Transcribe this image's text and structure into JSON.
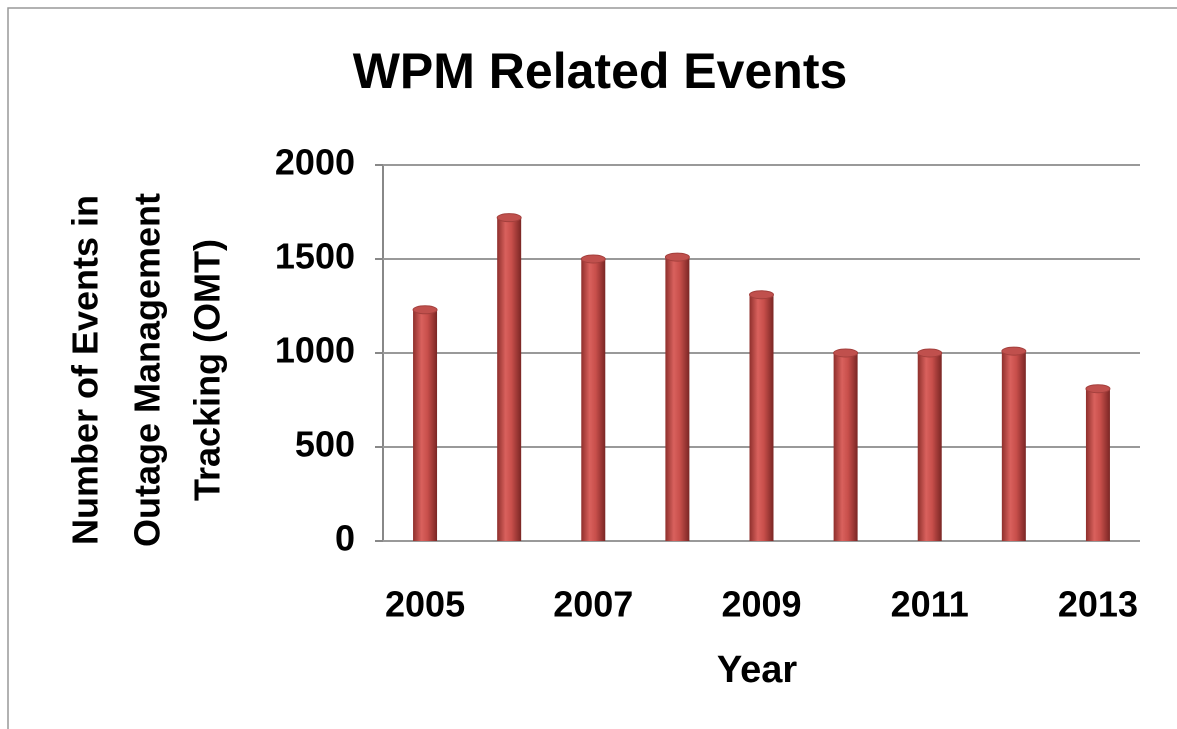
{
  "chart_data": {
    "type": "bar",
    "title": "WPM Related Events",
    "xlabel": "Year",
    "ylabel": [
      "Number of Events in",
      "Outage Management",
      "Tracking (OMT)"
    ],
    "categories": [
      "2005",
      null,
      "2007",
      null,
      "2009",
      null,
      "2011",
      null,
      "2013"
    ],
    "values": [
      1230,
      1720,
      1500,
      1510,
      1310,
      1000,
      1000,
      1010,
      810
    ],
    "color": "#c0504d",
    "ylim": [
      0,
      2000
    ],
    "yticks": [
      0,
      500,
      1000,
      1500,
      2000
    ],
    "grid": true
  }
}
